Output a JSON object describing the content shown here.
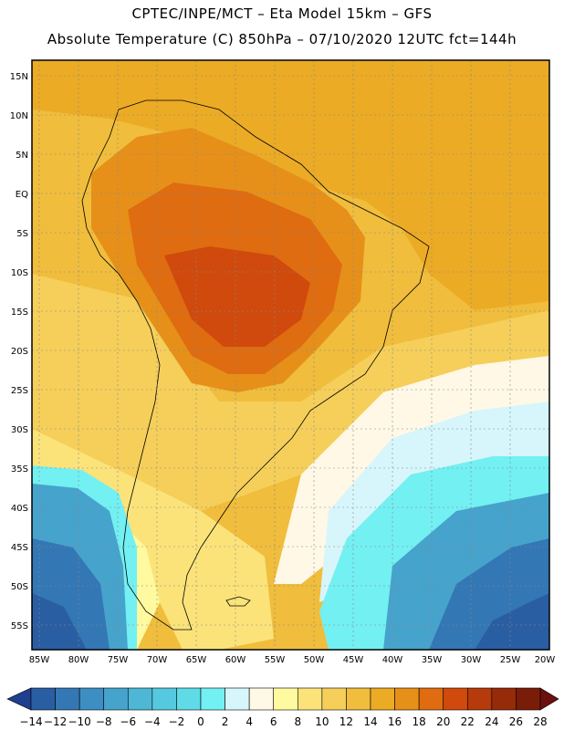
{
  "header": {
    "line1": "CPTEC/INPE/MCT –  Eta Model 15km – GFS",
    "line2": "Absolute Temperature (C) 850hPa – 07/10/2020 12UTC fct=144h"
  },
  "axes": {
    "lat_labels": [
      "15N",
      "10N",
      "5N",
      "EQ",
      "5S",
      "10S",
      "15S",
      "20S",
      "25S",
      "30S",
      "35S",
      "40S",
      "45S",
      "50S",
      "55S"
    ],
    "lon_labels": [
      "85W",
      "80W",
      "75W",
      "70W",
      "65W",
      "60W",
      "55W",
      "50W",
      "45W",
      "40W",
      "35W",
      "30W",
      "25W",
      "20W"
    ]
  },
  "colorbar": {
    "labels": [
      "-14",
      "-12",
      "-10",
      "-8",
      "-6",
      "-4",
      "-2",
      "0",
      "2",
      "4",
      "6",
      "8",
      "10",
      "12",
      "14",
      "16",
      "18",
      "20",
      "22",
      "24",
      "26",
      "28"
    ],
    "colors": [
      "#1f3f8f",
      "#2a5ea3",
      "#3377b5",
      "#3d8ec2",
      "#46a3cc",
      "#4fb7d6",
      "#55c9df",
      "#5fdbe8",
      "#73f0f2",
      "#d7f6fb",
      "#fff8e6",
      "#fffaa0",
      "#fbe37a",
      "#f5cf5a",
      "#f0bd3c",
      "#ecab25",
      "#e6901a",
      "#df6c10",
      "#cf4a0c",
      "#b53a0c",
      "#962b0a",
      "#7a1d08",
      "#6b0f0f"
    ]
  },
  "map": {
    "regions": [
      {
        "name": "north-pacific-band",
        "color": "#f0bd3c"
      },
      {
        "name": "tropical-atlantic",
        "color": "#f0bd3c"
      },
      {
        "name": "amazon-warm",
        "color": "#e6901a"
      },
      {
        "name": "central-hot",
        "color": "#df6c10"
      },
      {
        "name": "core-hot",
        "color": "#cf4a0c"
      },
      {
        "name": "southeast-warm",
        "color": "#f5cf5a"
      },
      {
        "name": "pacific-warm",
        "color": "#fbe37a"
      },
      {
        "name": "cold-southwest",
        "color": "#46a3cc"
      },
      {
        "name": "cold-south",
        "color": "#3377b5"
      },
      {
        "name": "cold-deep",
        "color": "#2a5ea3"
      },
      {
        "name": "atlantic-cool",
        "color": "#55c9df"
      },
      {
        "name": "atlantic-cold",
        "color": "#3d8ec2"
      },
      {
        "name": "atlantic-deep",
        "color": "#2a5ea3"
      },
      {
        "name": "pale-band",
        "color": "#d7f6fb"
      },
      {
        "name": "cream-band",
        "color": "#fff8e6"
      }
    ]
  }
}
